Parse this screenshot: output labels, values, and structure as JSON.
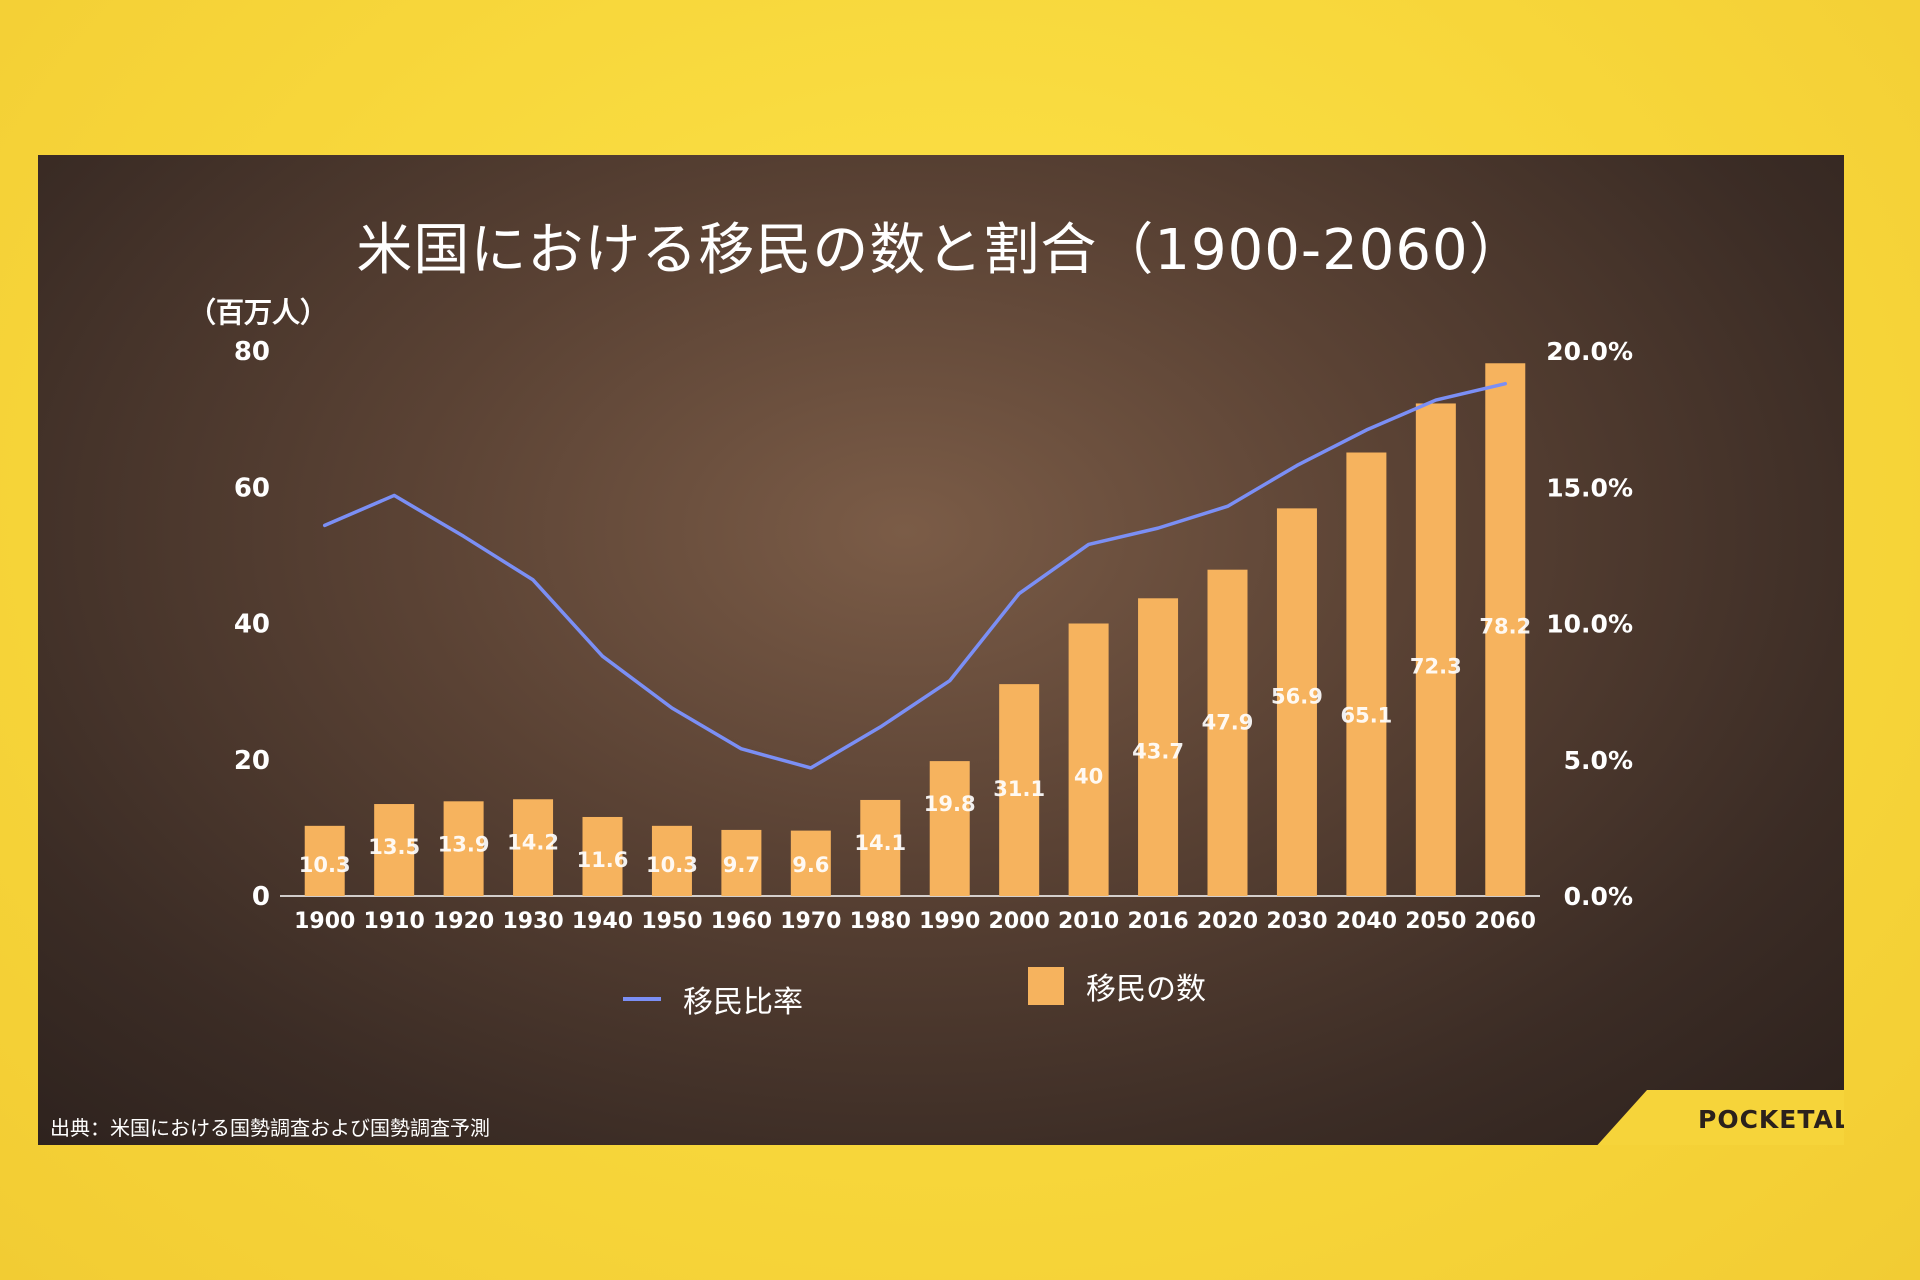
{
  "title": "米国における移民の数と割合（1900-2060）",
  "source": "出典：米国における国勢調査および国勢調査予測",
  "brand": "POCKETALK",
  "colors": {
    "bar": "#f6b35e",
    "line": "#7b8ff5",
    "text": "#ffffff",
    "background": "#f8d93a"
  },
  "chart_data": {
    "type": "bar",
    "title": "米国における移民の数と割合（1900-2060）",
    "categories": [
      "1900",
      "1910",
      "1920",
      "1930",
      "1940",
      "1950",
      "1960",
      "1970",
      "1980",
      "1990",
      "2000",
      "2010",
      "2016",
      "2020",
      "2030",
      "2040",
      "2050",
      "2060"
    ],
    "series": [
      {
        "name": "移民の数",
        "type": "bar",
        "axis": "left",
        "values": [
          10.3,
          13.5,
          13.9,
          14.2,
          11.6,
          10.3,
          9.7,
          9.6,
          14.1,
          19.8,
          31.1,
          40,
          43.7,
          47.9,
          56.9,
          65.1,
          72.3,
          78.2
        ],
        "labels": [
          "10.3",
          "13.5",
          "13.9",
          "14.2",
          "11.6",
          "10.3",
          "9.7",
          "9.6",
          "14.1",
          "19.8",
          "31.1",
          "40",
          "43.7",
          "47.9",
          "56.9",
          "65.1",
          "72.3",
          "78.2"
        ]
      },
      {
        "name": "移民比率",
        "type": "line",
        "axis": "right",
        "values": [
          13.6,
          14.7,
          13.2,
          11.6,
          8.8,
          6.9,
          5.4,
          4.7,
          6.2,
          7.9,
          11.1,
          12.9,
          13.5,
          14.3,
          15.8,
          17.1,
          18.2,
          18.8
        ]
      }
    ],
    "ylabel": "（百万人）",
    "ylim": [
      0,
      80
    ],
    "yticks": [
      "0",
      "20",
      "40",
      "60",
      "80"
    ],
    "y2lim": [
      0,
      20
    ],
    "y2ticks": [
      "0.0%",
      "5.0%",
      "10.0%",
      "15.0%",
      "20.0%"
    ],
    "legend": [
      "移民比率",
      "移民の数"
    ],
    "legend_position": "bottom-center",
    "grid": false
  }
}
